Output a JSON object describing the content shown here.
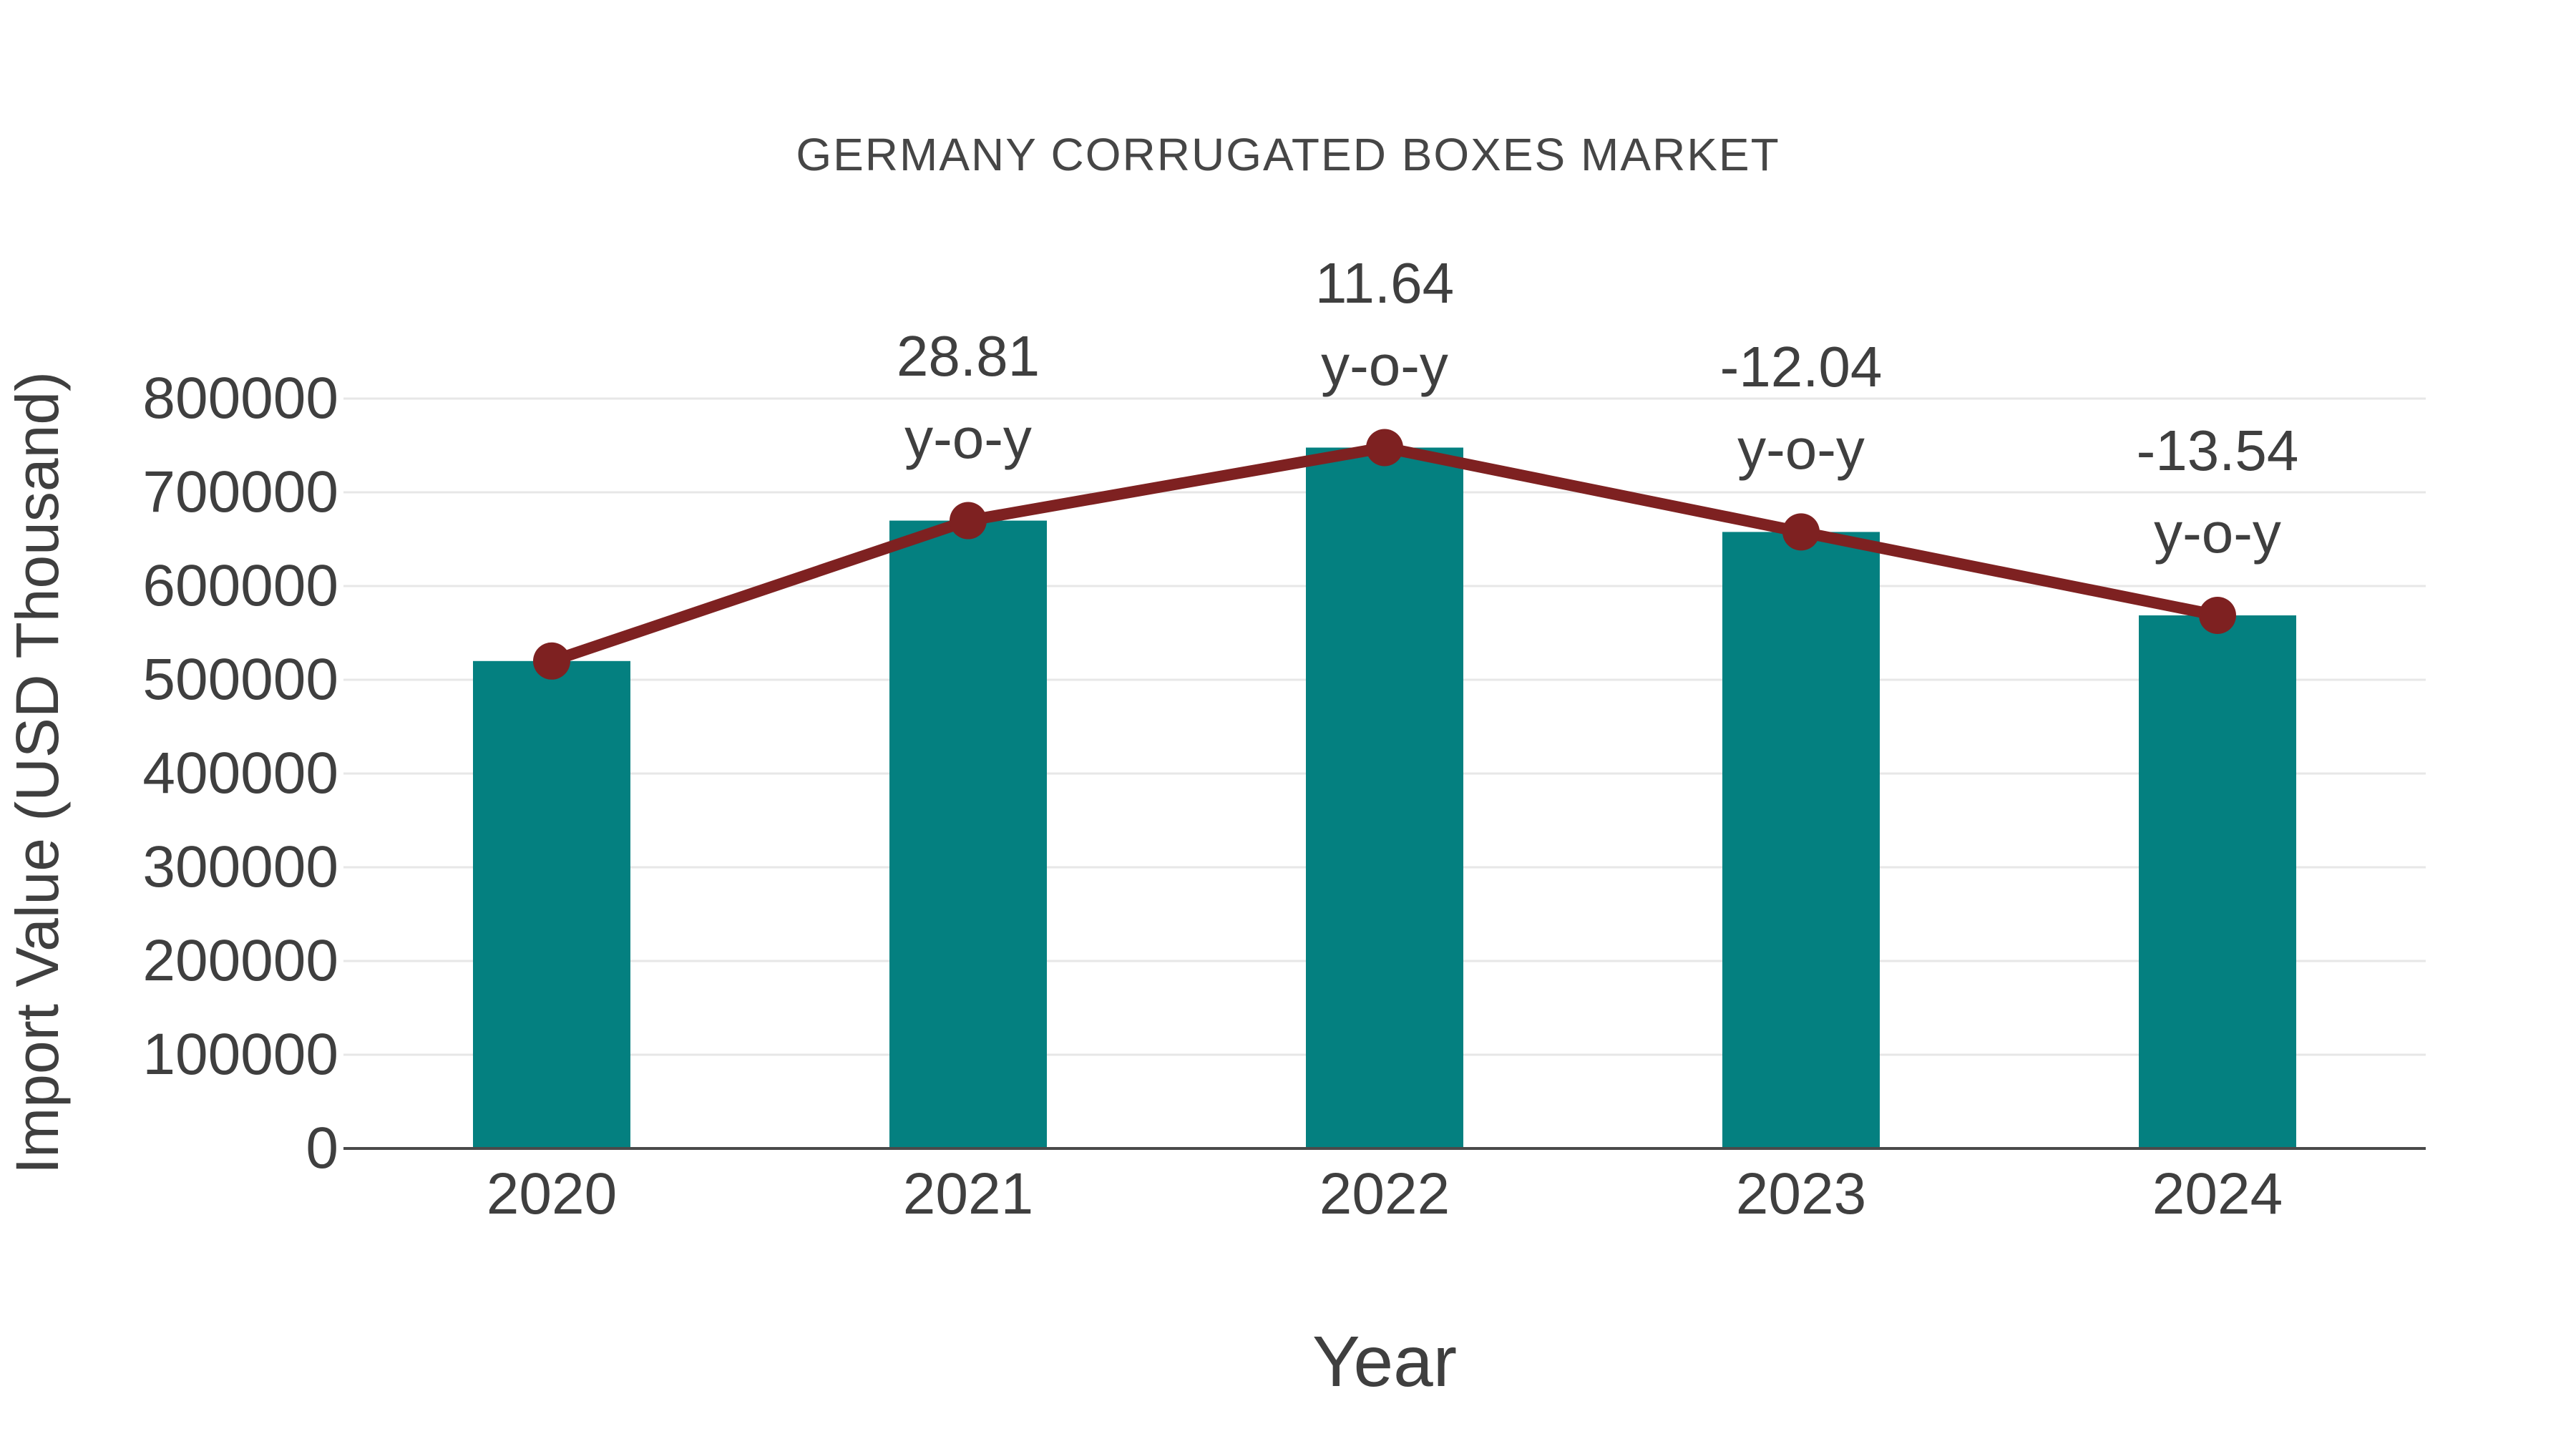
{
  "figure": {
    "background": "#ffffff"
  },
  "chart_data": {
    "type": "bar",
    "title": "GERMANY CORRUGATED BOXES MARKET",
    "xlabel": "Year",
    "ylabel": "Import Value (USD Thousand)",
    "categories": [
      "2020",
      "2021",
      "2022",
      "2023",
      "2024"
    ],
    "series": [
      {
        "name": "import-value-bars",
        "type": "bar",
        "values": [
          520000,
          669800,
          747700,
          657700,
          568700
        ]
      },
      {
        "name": "import-value-trend-line",
        "type": "line",
        "markers": true,
        "values": [
          520000,
          669800,
          747700,
          657700,
          568700
        ]
      }
    ],
    "annotations": [
      {
        "category": "2021",
        "value": "28.81",
        "label": "y-o-y"
      },
      {
        "category": "2022",
        "value": "11.64",
        "label": "y-o-y"
      },
      {
        "category": "2023",
        "value": "-12.04",
        "label": "y-o-y"
      },
      {
        "category": "2024",
        "value": "-13.54",
        "label": "y-o-y"
      }
    ],
    "ylim": [
      0,
      800000
    ],
    "yticks": [
      0,
      100000,
      200000,
      300000,
      400000,
      500000,
      600000,
      700000,
      800000
    ],
    "grid": true,
    "legend": "none",
    "colors": {
      "bar": "#048080",
      "line": "#7e2121",
      "marker": "#7e2121",
      "grid": "#e7e7e7",
      "axis": "#4a4a4a",
      "text": "#3f3f3f",
      "title": "#464646"
    }
  }
}
